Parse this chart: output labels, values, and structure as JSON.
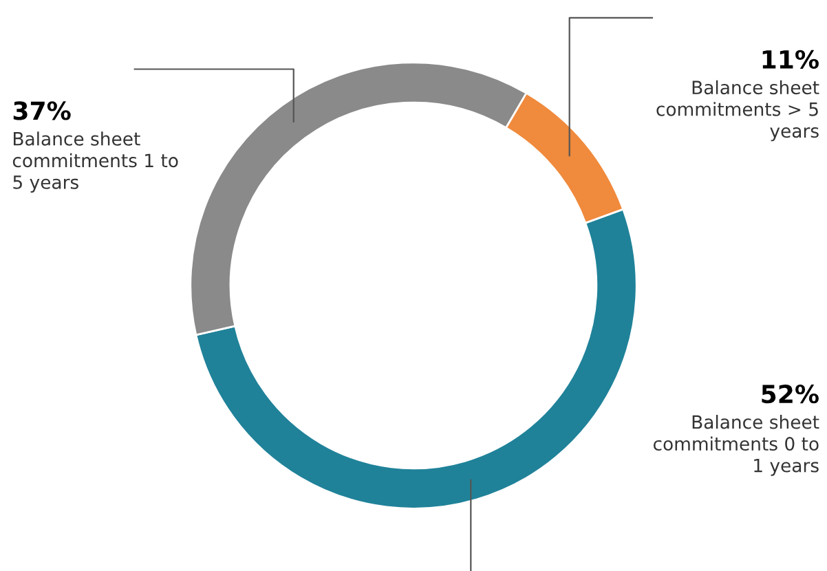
{
  "chart_data": {
    "type": "donut",
    "categories": [
      "Balance sheet commitments 0 to 1 years",
      "Balance sheet commitments 1 to 5 years",
      "Balance sheet commitments > 5 years"
    ],
    "values": [
      52,
      37,
      11
    ],
    "colors": [
      "#1f8299",
      "#8a8a8a",
      "#f08a3c"
    ],
    "value_labels": [
      "52%",
      "37%",
      "11%"
    ],
    "legend": false
  }
}
